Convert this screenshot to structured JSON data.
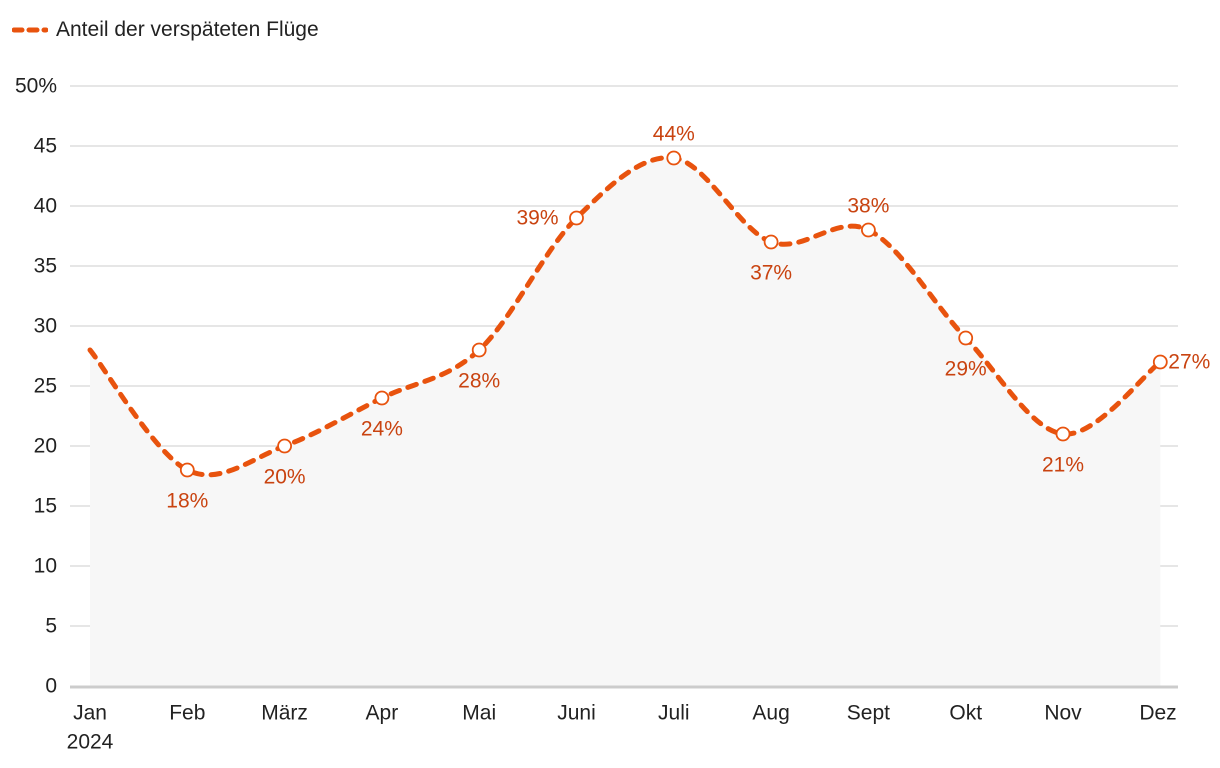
{
  "chart_data": {
    "type": "line",
    "title": "",
    "legend": {
      "label": "Anteil der verspäteten Flüge",
      "position": "top-left"
    },
    "categories": [
      "Jan",
      "Feb",
      "März",
      "Apr",
      "Mai",
      "Juni",
      "Juli",
      "Aug",
      "Sept",
      "Okt",
      "Nov",
      "Dez"
    ],
    "x_sublabel": "2024",
    "series": [
      {
        "name": "Anteil der verspäteten Flüge",
        "values": [
          28,
          18,
          20,
          24,
          28,
          39,
          44,
          37,
          38,
          29,
          21,
          27
        ]
      }
    ],
    "data_labels": [
      "",
      "18%",
      "20%",
      "24%",
      "28%",
      "39%",
      "44%",
      "37%",
      "38%",
      "29%",
      "21%",
      "27%"
    ],
    "ylim": [
      0,
      50
    ],
    "y_ticks": [
      0,
      5,
      10,
      15,
      20,
      25,
      30,
      35,
      40,
      45,
      50
    ],
    "y_tick_labels": [
      "0",
      "5",
      "10",
      "15",
      "20",
      "25",
      "30",
      "35",
      "40",
      "45",
      "50%"
    ],
    "xlabel": "",
    "ylabel": "",
    "grid": true,
    "colors": {
      "series": "#e8530e",
      "label": "#c94310",
      "grid": "#dddddd",
      "axis": "#cccccc",
      "area": "#f7f7f7",
      "text": "#222222"
    }
  }
}
